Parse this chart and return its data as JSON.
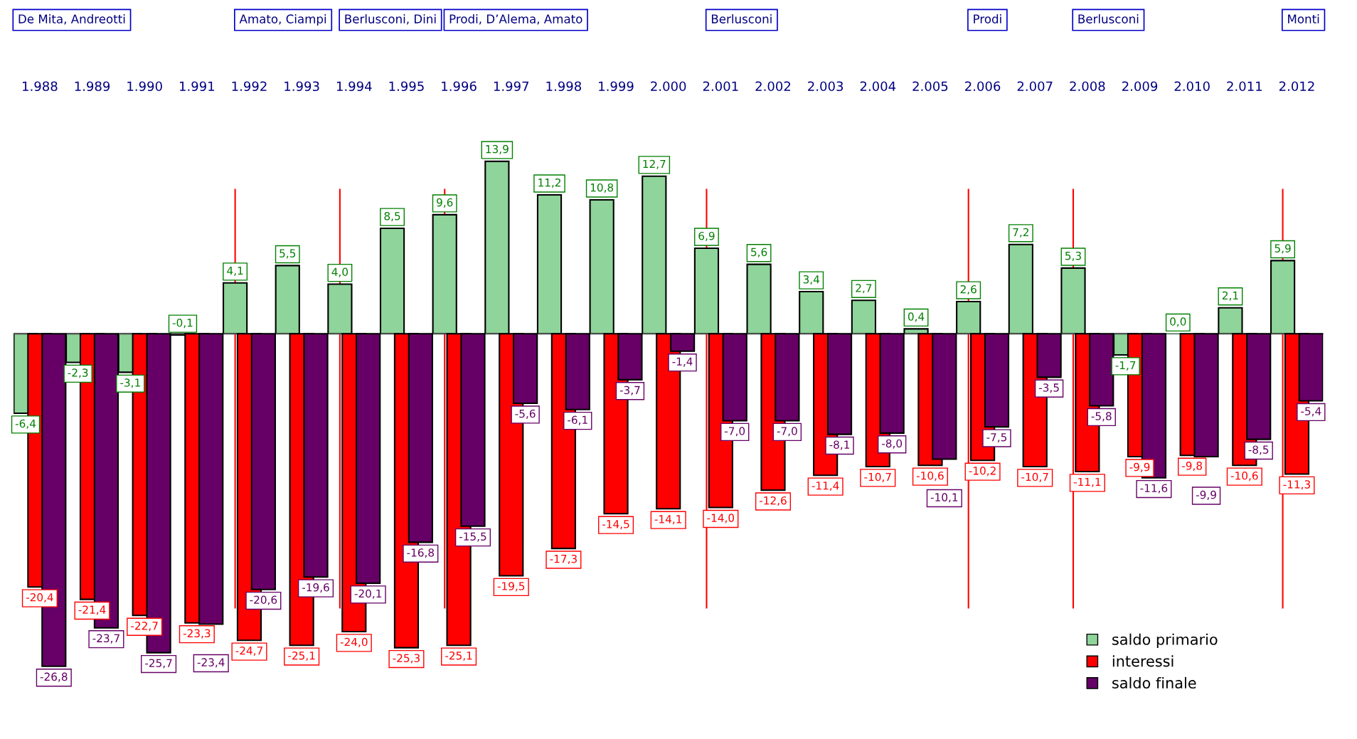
{
  "chart_data": {
    "type": "bar",
    "categories": [
      "1.988",
      "1.989",
      "1.990",
      "1.991",
      "1.992",
      "1.993",
      "1.994",
      "1.995",
      "1.996",
      "1.997",
      "1.998",
      "1.999",
      "2.000",
      "2.001",
      "2.002",
      "2.003",
      "2.004",
      "2.005",
      "2.006",
      "2.007",
      "2.008",
      "2.009",
      "2.010",
      "2.011",
      "2.012"
    ],
    "series": [
      {
        "name": "saldo primario",
        "color": "#8fd49a",
        "values": [
          -6.4,
          -2.3,
          -3.1,
          -0.1,
          4.1,
          5.5,
          4.0,
          8.5,
          9.6,
          13.9,
          11.2,
          10.8,
          12.7,
          6.9,
          5.6,
          3.4,
          2.7,
          0.4,
          2.6,
          7.2,
          5.3,
          -1.7,
          0.0,
          2.1,
          5.9
        ],
        "value_labels": [
          "-6,4",
          "-2,3",
          "-3,1",
          "-0,1",
          "4,1",
          "5,5",
          "4,0",
          "8,5",
          "9,6",
          "13,9",
          "11,2",
          "10,8",
          "12,7",
          "6,9",
          "5,6",
          "3,4",
          "2,7",
          "0,4",
          "2,6",
          "7,2",
          "5,3",
          "-1,7",
          "0,0",
          "2,1",
          "5,9"
        ]
      },
      {
        "name": "interessi",
        "color": "#ff0000",
        "values": [
          -20.4,
          -21.4,
          -22.7,
          -23.3,
          -24.7,
          -25.1,
          -24.0,
          -25.3,
          -25.1,
          -19.5,
          -17.3,
          -14.5,
          -14.1,
          -14.0,
          -12.6,
          -11.4,
          -10.7,
          -10.6,
          -10.2,
          -10.7,
          -11.1,
          -9.9,
          -9.8,
          -10.6,
          -11.3
        ],
        "value_labels": [
          "-20,4",
          "-21,4",
          "-22,7",
          "-23,3",
          "-24,7",
          "-25,1",
          "-24,0",
          "-25,3",
          "-25,1",
          "-19,5",
          "-17,3",
          "-14,5",
          "-14,1",
          "-14,0",
          "-12,6",
          "-11,4",
          "-10,7",
          "-10,6",
          "-10,2",
          "-10,7",
          "-11,1",
          "-9,9",
          "-9,8",
          "-10,6",
          "-11,3"
        ]
      },
      {
        "name": "saldo finale",
        "color": "#660066",
        "values": [
          -26.8,
          -23.7,
          -25.7,
          -23.4,
          -20.6,
          -19.6,
          -20.1,
          -16.8,
          -15.5,
          -5.6,
          -6.1,
          -3.7,
          -1.4,
          -7.0,
          -7.0,
          -8.1,
          -8.0,
          -10.1,
          -7.5,
          -3.5,
          -5.8,
          -11.6,
          -9.9,
          -8.5,
          -5.4
        ],
        "value_labels": [
          "-26,8",
          "-23,7",
          "-25,7",
          "-23,4",
          "-20,6",
          "-19,6",
          "-20,1",
          "-16,8",
          "-15,5",
          "-5,6",
          "-6,1",
          "-3,7",
          "-1,4",
          "-7,0",
          "-7,0",
          "-8,1",
          "-8,0",
          "-10,1",
          "-7,5",
          "-3,5",
          "-5,8",
          "-11,6",
          "-9,9",
          "-8,5",
          "-5,4"
        ]
      }
    ],
    "tick_labels": "x",
    "grid": false,
    "legend": "bottom right",
    "marker": "square",
    "ref_lines": [
      {
        "axis": "x",
        "value": "1.992",
        "color": "#ff0000"
      },
      {
        "axis": "x",
        "value": "1.994",
        "color": "#ff0000"
      },
      {
        "axis": "x",
        "value": "1.996",
        "color": "#ff0000"
      },
      {
        "axis": "x",
        "value": "2.001",
        "color": "#ff0000"
      },
      {
        "axis": "x",
        "value": "2.006",
        "color": "#ff0000"
      },
      {
        "axis": "x",
        "value": "2.008",
        "color": "#ff0000"
      },
      {
        "axis": "x",
        "value": "2.012",
        "color": "#ff0000"
      }
    ],
    "annotations": [
      "De Mita, Andreotti",
      "Amato, Ciampi",
      "Berlusconi, Dini",
      "Prodi, D’Alema, Amato",
      "Berlusconi",
      "Prodi",
      "Berlusconi",
      "Monti"
    ]
  }
}
